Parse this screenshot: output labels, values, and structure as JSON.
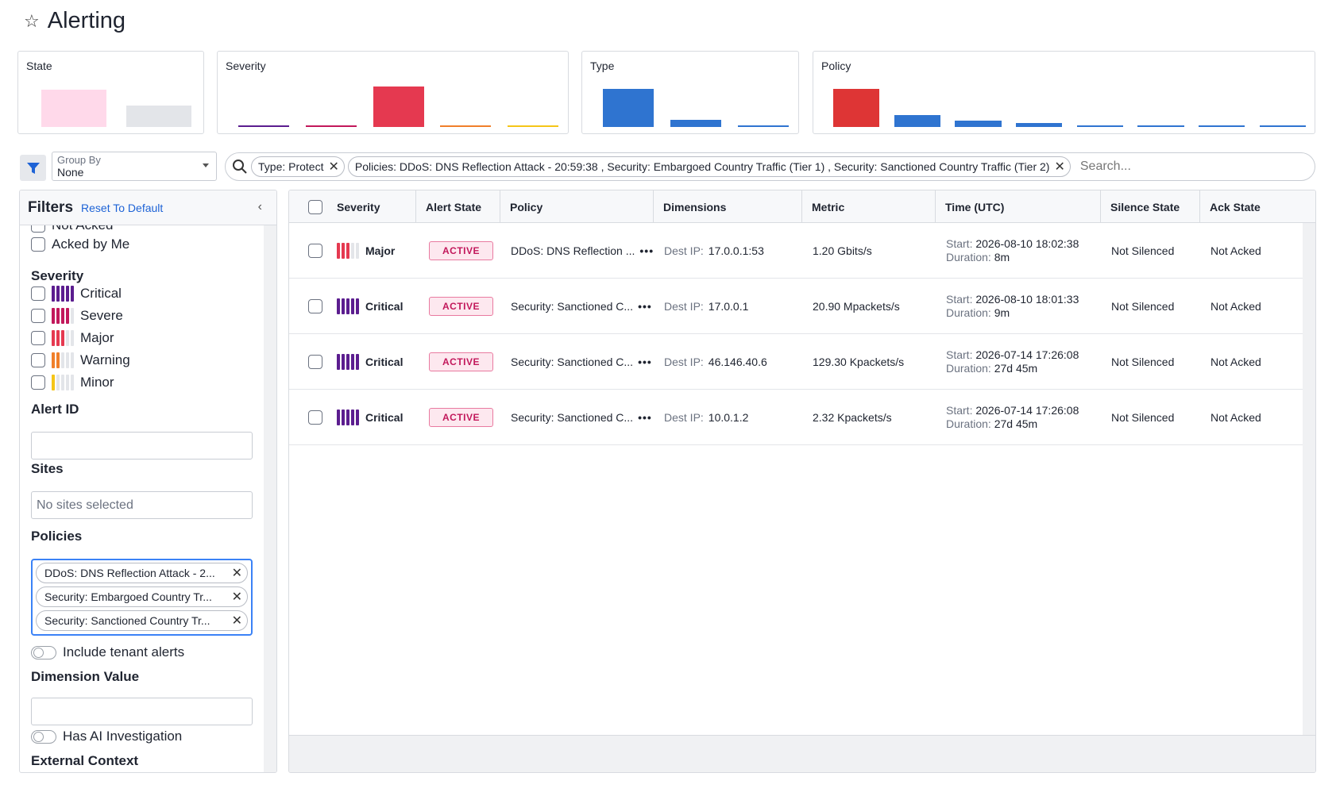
{
  "page": {
    "title": "Alerting"
  },
  "summary": [
    {
      "title": "State",
      "bars": [
        {
          "color": "#ffd9ea",
          "level": 0.78
        },
        {
          "color": "#e3e5e9",
          "level": 0.45
        }
      ]
    },
    {
      "title": "Severity",
      "bars": [
        {
          "color": "#5b1d8f",
          "level": 0.02
        },
        {
          "color": "#c2185b",
          "level": 0.04
        },
        {
          "color": "#e53950",
          "level": 0.85
        },
        {
          "color": "#f07f2a",
          "level": 0.02
        },
        {
          "color": "#f5c518",
          "level": 0.02
        }
      ]
    },
    {
      "title": "Type",
      "bars": [
        {
          "color": "#2f74d0",
          "level": 0.8
        },
        {
          "color": "#2f74d0",
          "level": 0.15
        },
        {
          "color": "#2f74d0",
          "level": 0.03
        }
      ]
    },
    {
      "title": "Policy",
      "bars": [
        {
          "color": "#de3535",
          "level": 0.8
        },
        {
          "color": "#2f74d0",
          "level": 0.25
        },
        {
          "color": "#2f74d0",
          "level": 0.13
        },
        {
          "color": "#2f74d0",
          "level": 0.09
        },
        {
          "color": "#2f74d0",
          "level": 0.04
        },
        {
          "color": "#2f74d0",
          "level": 0.03
        },
        {
          "color": "#2f74d0",
          "level": 0.03
        },
        {
          "color": "#2f74d0",
          "level": 0.03
        }
      ]
    }
  ],
  "toolbar": {
    "filter_icon": "funnel-icon",
    "group_by_label": "Group By",
    "group_by_value": "None",
    "chips": [
      "Type: Protect",
      "Policies: DDoS: DNS Reflection Attack - 20:59:38 , Security: Embargoed Country Traffic (Tier 1) , Security: Sanctioned Country Traffic (Tier 2)"
    ],
    "search_placeholder": "Search..."
  },
  "filters": {
    "title": "Filters",
    "reset_label": "Reset To Default",
    "collapse_icon": "‹",
    "partial_top_label": "Not Acked",
    "acked_by_me": "Acked by Me",
    "severity_title": "Severity",
    "severities": [
      {
        "label": "Critical",
        "color": "#5b1d8f",
        "filled": 5
      },
      {
        "label": "Severe",
        "color": "#c2185b",
        "filled": 4
      },
      {
        "label": "Major",
        "color": "#e53950",
        "filled": 3
      },
      {
        "label": "Warning",
        "color": "#f07f2a",
        "filled": 2
      },
      {
        "label": "Minor",
        "color": "#f5c518",
        "filled": 1
      }
    ],
    "alert_id_title": "Alert ID",
    "sites_title": "Sites",
    "sites_placeholder": "No sites selected",
    "policies_title": "Policies",
    "policies": [
      "DDoS: DNS Reflection Attack - 2...",
      "Security: Embargoed Country Tr...",
      "Security: Sanctioned Country Tr..."
    ],
    "include_tenant": "Include tenant alerts",
    "dimension_value_title": "Dimension Value",
    "has_ai": "Has AI Investigation",
    "external_context_title": "External Context"
  },
  "table": {
    "headers": [
      "Severity",
      "Alert State",
      "Policy",
      "Dimensions",
      "Metric",
      "Time (UTC)",
      "Silence State",
      "Ack State"
    ],
    "start_label": "Start:",
    "duration_label": "Duration:",
    "dest_label": "Dest IP:",
    "rows": [
      {
        "severity": "Major",
        "sev_color": "#e53950",
        "sev_filled": 3,
        "state": "ACTIVE",
        "policy": "DDoS: DNS Reflection ...",
        "dest_ip": "17.0.0.1:53",
        "metric": "1.20 Gbits/s",
        "start": "2026-08-10 18:02:38",
        "duration": "8m",
        "silence": "Not Silenced",
        "ack": "Not Acked"
      },
      {
        "severity": "Critical",
        "sev_color": "#5b1d8f",
        "sev_filled": 5,
        "state": "ACTIVE",
        "policy": "Security: Sanctioned C...",
        "dest_ip": "17.0.0.1",
        "metric": "20.90 Mpackets/s",
        "start": "2026-08-10 18:01:33",
        "duration": "9m",
        "silence": "Not Silenced",
        "ack": "Not Acked"
      },
      {
        "severity": "Critical",
        "sev_color": "#5b1d8f",
        "sev_filled": 5,
        "state": "ACTIVE",
        "policy": "Security: Sanctioned C...",
        "dest_ip": "46.146.40.6",
        "metric": "129.30 Kpackets/s",
        "start": "2026-07-14 17:26:08",
        "duration": "27d 45m",
        "silence": "Not Silenced",
        "ack": "Not Acked"
      },
      {
        "severity": "Critical",
        "sev_color": "#5b1d8f",
        "sev_filled": 5,
        "state": "ACTIVE",
        "policy": "Security: Sanctioned C...",
        "dest_ip": "10.0.1.2",
        "metric": "2.32 Kpackets/s",
        "start": "2026-07-14 17:26:08",
        "duration": "27d 45m",
        "silence": "Not Silenced",
        "ack": "Not Acked"
      }
    ]
  }
}
